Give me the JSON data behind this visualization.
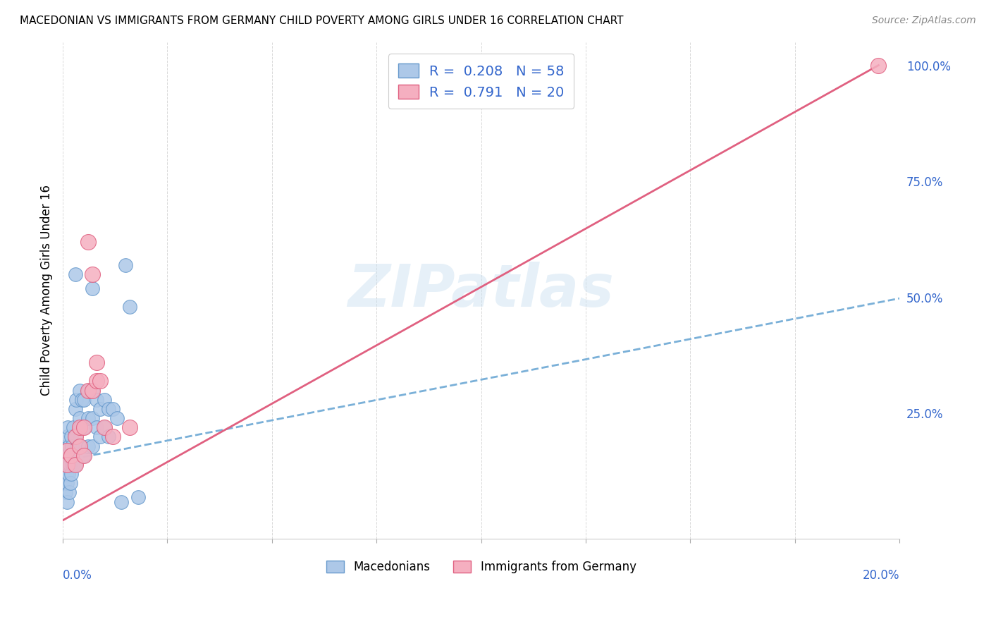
{
  "title": "MACEDONIAN VS IMMIGRANTS FROM GERMANY CHILD POVERTY AMONG GIRLS UNDER 16 CORRELATION CHART",
  "source": "Source: ZipAtlas.com",
  "ylabel": "Child Poverty Among Girls Under 16",
  "right_yticks": [
    0.0,
    0.25,
    0.5,
    0.75,
    1.0
  ],
  "right_yticklabels": [
    "",
    "25.0%",
    "50.0%",
    "75.0%",
    "100.0%"
  ],
  "blue_R": 0.208,
  "blue_N": 58,
  "pink_R": 0.791,
  "pink_N": 20,
  "blue_color": "#adc8e8",
  "pink_color": "#f5afc0",
  "blue_edge": "#6699cc",
  "pink_edge": "#e06080",
  "trend_blue_color": "#7ab0d8",
  "trend_pink_color": "#e06080",
  "watermark": "ZIPatlas",
  "blue_trend_x": [
    0.0,
    0.2
  ],
  "blue_trend_y": [
    0.148,
    0.498
  ],
  "pink_trend_x": [
    0.0,
    0.195
  ],
  "pink_trend_y": [
    0.02,
    1.0
  ],
  "blue_x": [
    0.0003,
    0.0005,
    0.0005,
    0.0007,
    0.0008,
    0.0008,
    0.001,
    0.001,
    0.001,
    0.001,
    0.0012,
    0.0012,
    0.0014,
    0.0015,
    0.0015,
    0.0017,
    0.0018,
    0.002,
    0.002,
    0.002,
    0.0022,
    0.0023,
    0.0025,
    0.003,
    0.003,
    0.003,
    0.0032,
    0.0035,
    0.004,
    0.004,
    0.004,
    0.0042,
    0.0045,
    0.005,
    0.005,
    0.005,
    0.006,
    0.006,
    0.006,
    0.007,
    0.007,
    0.007,
    0.008,
    0.008,
    0.009,
    0.009,
    0.01,
    0.01,
    0.011,
    0.011,
    0.012,
    0.013,
    0.014,
    0.015,
    0.016,
    0.018,
    0.003,
    0.007
  ],
  "blue_y": [
    0.17,
    0.1,
    0.14,
    0.08,
    0.12,
    0.18,
    0.16,
    0.2,
    0.1,
    0.06,
    0.14,
    0.22,
    0.12,
    0.18,
    0.08,
    0.14,
    0.1,
    0.2,
    0.16,
    0.12,
    0.18,
    0.14,
    0.22,
    0.26,
    0.2,
    0.14,
    0.28,
    0.18,
    0.3,
    0.24,
    0.18,
    0.22,
    0.28,
    0.28,
    0.22,
    0.16,
    0.3,
    0.24,
    0.18,
    0.3,
    0.24,
    0.18,
    0.28,
    0.22,
    0.26,
    0.2,
    0.28,
    0.22,
    0.26,
    0.2,
    0.26,
    0.24,
    0.06,
    0.57,
    0.48,
    0.07,
    0.55,
    0.52
  ],
  "pink_x": [
    0.001,
    0.001,
    0.002,
    0.003,
    0.003,
    0.004,
    0.004,
    0.005,
    0.005,
    0.006,
    0.006,
    0.007,
    0.008,
    0.009,
    0.01,
    0.007,
    0.008,
    0.012,
    0.016,
    0.195
  ],
  "pink_y": [
    0.17,
    0.14,
    0.16,
    0.2,
    0.14,
    0.18,
    0.22,
    0.22,
    0.16,
    0.62,
    0.3,
    0.3,
    0.32,
    0.32,
    0.22,
    0.55,
    0.36,
    0.2,
    0.22,
    1.0
  ],
  "xlim": [
    0.0,
    0.2
  ],
  "ylim": [
    -0.02,
    1.05
  ]
}
